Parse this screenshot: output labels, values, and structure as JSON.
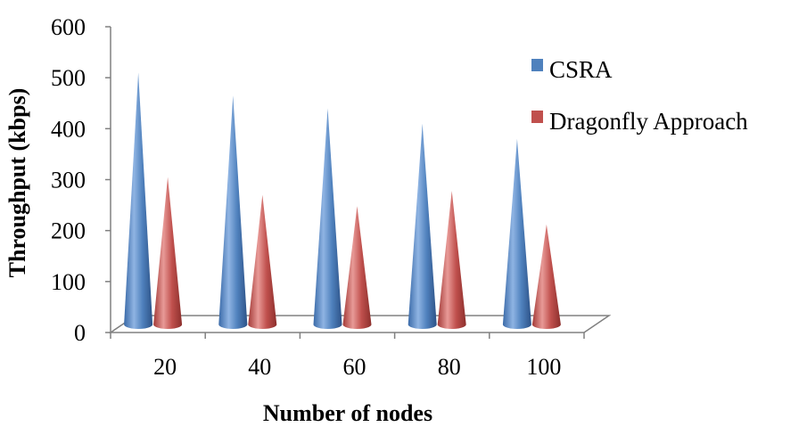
{
  "chart_data": {
    "type": "bar",
    "style": "3d-cone",
    "title": "",
    "xlabel": "Number of nodes",
    "ylabel": "Throughput (kbps)",
    "categories": [
      "20",
      "40",
      "60",
      "80",
      "100"
    ],
    "ylim": [
      0,
      600
    ],
    "yticks": [
      "0",
      "100",
      "200",
      "300",
      "400",
      "500",
      "600"
    ],
    "legend_position": "right",
    "series": [
      {
        "name": "CSRA",
        "color": "#4F81BD",
        "values": [
          510,
          465,
          440,
          410,
          380
        ]
      },
      {
        "name": "Dragonfly Approach",
        "color": "#C0504D",
        "values": [
          305,
          270,
          248,
          278,
          212
        ]
      }
    ]
  }
}
